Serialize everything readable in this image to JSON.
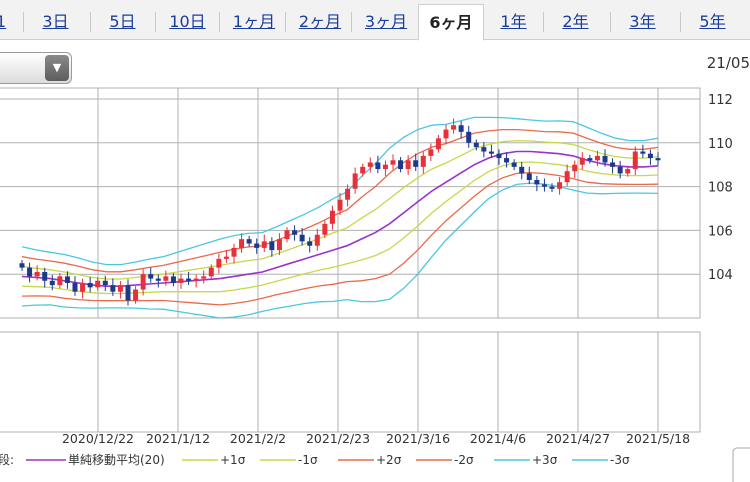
{
  "tabs": [
    {
      "label": "1"
    },
    {
      "label": "3日"
    },
    {
      "label": "5日"
    },
    {
      "label": "10日"
    },
    {
      "label": "1ヶ月"
    },
    {
      "label": "2ヶ月"
    },
    {
      "label": "3ヶ月"
    },
    {
      "label": "6ヶ月",
      "active": true
    },
    {
      "label": "1年"
    },
    {
      "label": "2年"
    },
    {
      "label": "3年"
    },
    {
      "label": "5年"
    }
  ],
  "dropdown": {
    "value": ""
  },
  "corner_date": "21/05",
  "colors": {
    "up": "#e8303a",
    "down": "#1c3a8c",
    "sma": "#9933cc",
    "s1": "#c8d84a",
    "s2": "#e86a4a",
    "s3": "#4ac8e0",
    "grid": "#b0b0b0"
  },
  "legend": {
    "prefix": "段:",
    "items": [
      {
        "label": "単純移動平均(20)",
        "color": "#9933cc"
      },
      {
        "label": "+1σ",
        "color": "#c8d84a"
      },
      {
        "label": "-1σ",
        "color": "#c8d84a"
      },
      {
        "label": "+2σ",
        "color": "#e86a4a"
      },
      {
        "label": "-2σ",
        "color": "#e86a4a"
      },
      {
        "label": "+3σ",
        "color": "#4ac8e0"
      },
      {
        "label": "-3σ",
        "color": "#4ac8e0"
      }
    ]
  },
  "chart_data": {
    "type": "candlestick",
    "ylim": [
      102,
      112.5
    ],
    "yticks": [
      104,
      106,
      108,
      110,
      112
    ],
    "xticks": [
      "2020/12/22",
      "2021/1/12",
      "2021/2/2",
      "2021/2/23",
      "2021/3/16",
      "2021/4/6",
      "2021/4/27",
      "2021/5/18"
    ],
    "close": [
      104.3,
      103.9,
      104.1,
      103.7,
      103.5,
      103.9,
      103.6,
      103.2,
      103.6,
      103.4,
      103.7,
      103.5,
      103.2,
      103.5,
      102.8,
      103.3,
      104.0,
      103.8,
      103.7,
      103.9,
      103.6,
      103.8,
      103.7,
      103.8,
      103.9,
      104.3,
      104.7,
      104.8,
      105.2,
      105.6,
      105.4,
      105.2,
      105.5,
      105.1,
      105.6,
      106.0,
      105.8,
      105.5,
      105.3,
      105.8,
      106.3,
      106.9,
      107.4,
      107.9,
      108.6,
      108.9,
      109.1,
      108.8,
      109.0,
      109.2,
      108.8,
      109.2,
      108.9,
      109.4,
      109.7,
      110.2,
      110.6,
      110.8,
      110.5,
      110.0,
      109.8,
      109.6,
      109.5,
      109.3,
      109.1,
      108.9,
      108.6,
      108.3,
      108.1,
      108.0,
      107.9,
      108.2,
      108.7,
      109.0,
      109.3,
      109.2,
      109.4,
      109.1,
      108.9,
      108.6,
      108.8,
      109.6,
      109.5,
      109.3,
      109.2
    ],
    "sma20": [
      103.9,
      103.85,
      103.8,
      103.7,
      103.6,
      103.5,
      103.45,
      103.45,
      103.5,
      103.55,
      103.6,
      103.65,
      103.7,
      103.75,
      103.8,
      103.9,
      104.0,
      104.1,
      104.3,
      104.5,
      104.7,
      104.9,
      105.1,
      105.3,
      105.6,
      105.9,
      106.3,
      106.8,
      107.3,
      107.8,
      108.2,
      108.6,
      109.0,
      109.3,
      109.5,
      109.6,
      109.6,
      109.55,
      109.5,
      109.4,
      109.2,
      109.05,
      108.95,
      108.9,
      108.9,
      108.95
    ],
    "sigma": [
      0.45,
      0.42,
      0.4,
      0.4,
      0.38,
      0.35,
      0.33,
      0.33,
      0.35,
      0.38,
      0.4,
      0.45,
      0.5,
      0.55,
      0.6,
      0.62,
      0.62,
      0.6,
      0.62,
      0.65,
      0.68,
      0.72,
      0.78,
      0.82,
      0.95,
      1.05,
      1.15,
      1.15,
      1.1,
      1.0,
      0.88,
      0.8,
      0.72,
      0.62,
      0.55,
      0.5,
      0.48,
      0.48,
      0.5,
      0.52,
      0.5,
      0.46,
      0.42,
      0.4,
      0.4,
      0.42
    ]
  }
}
